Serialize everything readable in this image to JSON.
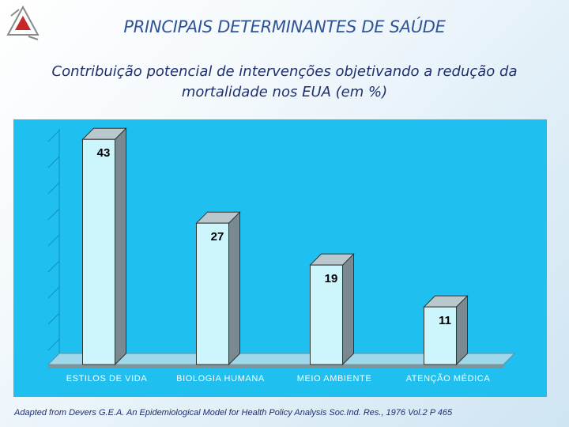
{
  "header": {
    "title": "PRINCIPAIS DETERMINANTES DE SAÚDE",
    "subtitle": "Contribuição potencial de intervenções objetivando a redução da mortalidade nos EUA (em %)"
  },
  "chart_data": {
    "type": "bar",
    "categories": [
      "ESTILOS DE VIDA",
      "BIOLOGIA HUMANA",
      "MEIO AMBIENTE",
      "ATENÇÃO MÉDICA"
    ],
    "values": [
      43,
      27,
      19,
      11
    ],
    "data_labels": [
      "43",
      "27",
      "19",
      "11"
    ],
    "ylim": [
      0,
      45
    ],
    "grid": false,
    "style": "3d",
    "colors": {
      "panel": "#1fbff0",
      "bar_face": "#ccf6fc",
      "bar_side": "#7a8a90",
      "bar_top": "#b9c8cc"
    }
  },
  "footer": {
    "source": "Adapted from Devers G.E.A. An Epidemiological Model for Health Policy Analysis Soc.Ind. Res., 1976 Vol.2 P 465"
  }
}
